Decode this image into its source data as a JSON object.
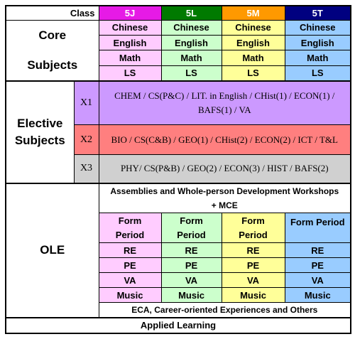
{
  "header": {
    "class_label": "Class"
  },
  "classes": [
    {
      "name": "5J",
      "header_color": "#e61ae6",
      "bg": "#ffccff"
    },
    {
      "name": "5L",
      "header_color": "#007a00",
      "bg": "#ccffcc"
    },
    {
      "name": "5M",
      "header_color": "#ff9900",
      "bg": "#ffff99"
    },
    {
      "name": "5T",
      "header_color": "#000080",
      "bg": "#99ccff"
    }
  ],
  "core": {
    "label_line1": "Core",
    "label_line2": "Subjects",
    "subjects": [
      "Chinese",
      "English",
      "Math",
      "LS"
    ]
  },
  "elective": {
    "label_line1": "Elective",
    "label_line2": "Subjects",
    "x1": {
      "code": "X1",
      "line1": "CHEM / CS(P&C) / LIT. in English / CHist(1) / ECON(1) /",
      "line2": "BAFS(1) / VA",
      "bg": "#cc99ff",
      "code_bg": "#cc99ff"
    },
    "x2": {
      "code": "X2",
      "text": "BIO / CS(C&B) / GEO(1) / CHist(2) / ECON(2) / ICT / T&L",
      "bg": "#ff7f7f",
      "code_bg": "#ff7f7f"
    },
    "x3": {
      "code": "X3",
      "text": "PHY/ CS(P&B) / GEO(2) / ECON(3) / HIST / BAFS(2)",
      "bg": "#d0d0d0",
      "code_bg": "#d0d0d0"
    }
  },
  "ole": {
    "label": "OLE",
    "assembly_line1": "Assemblies and Whole-person Development Workshops",
    "assembly_line2": "+ MCE",
    "form_period_l1": "Form",
    "form_period_l2": "Period",
    "form_period_full": "Form Period",
    "subjects": [
      "RE",
      "PE",
      "VA",
      "Music"
    ],
    "eca": "ECA, Career-oriented Experiences and Others"
  },
  "applied_learning": "Applied Learning"
}
